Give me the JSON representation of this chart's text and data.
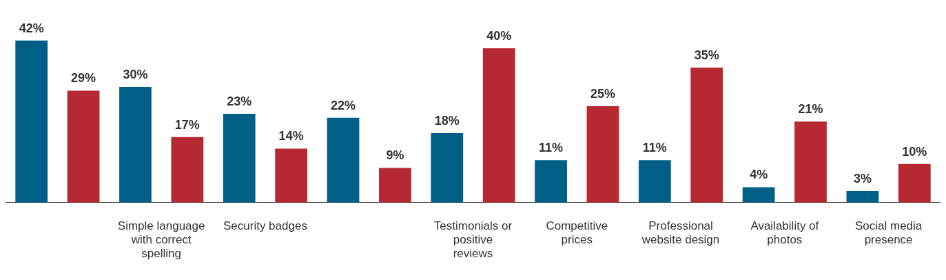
{
  "chart_data": {
    "type": "bar",
    "categories": [
      null,
      "Simple language with correct spelling",
      "Security badges",
      null,
      "Testimonials or positive reviews",
      "Competitive prices",
      "Professional website design",
      "Availability of photos",
      "Social media presence"
    ],
    "series": [
      {
        "color": "#005f86",
        "values": [
          42,
          30,
          23,
          22,
          18,
          11,
          11,
          4,
          3
        ],
        "value_labels": [
          "42%",
          "30%",
          "23%",
          "22%",
          "18%",
          "11%",
          "11%",
          "4%",
          "3%"
        ]
      },
      {
        "color": "#b72932",
        "values": [
          29,
          17,
          14,
          9,
          40,
          25,
          35,
          21,
          10
        ],
        "value_labels": [
          "29%",
          "17%",
          "14%",
          "9%",
          "40%",
          "25%",
          "35%",
          "21%",
          "10%"
        ]
      }
    ],
    "grid": false,
    "legend": false
  }
}
